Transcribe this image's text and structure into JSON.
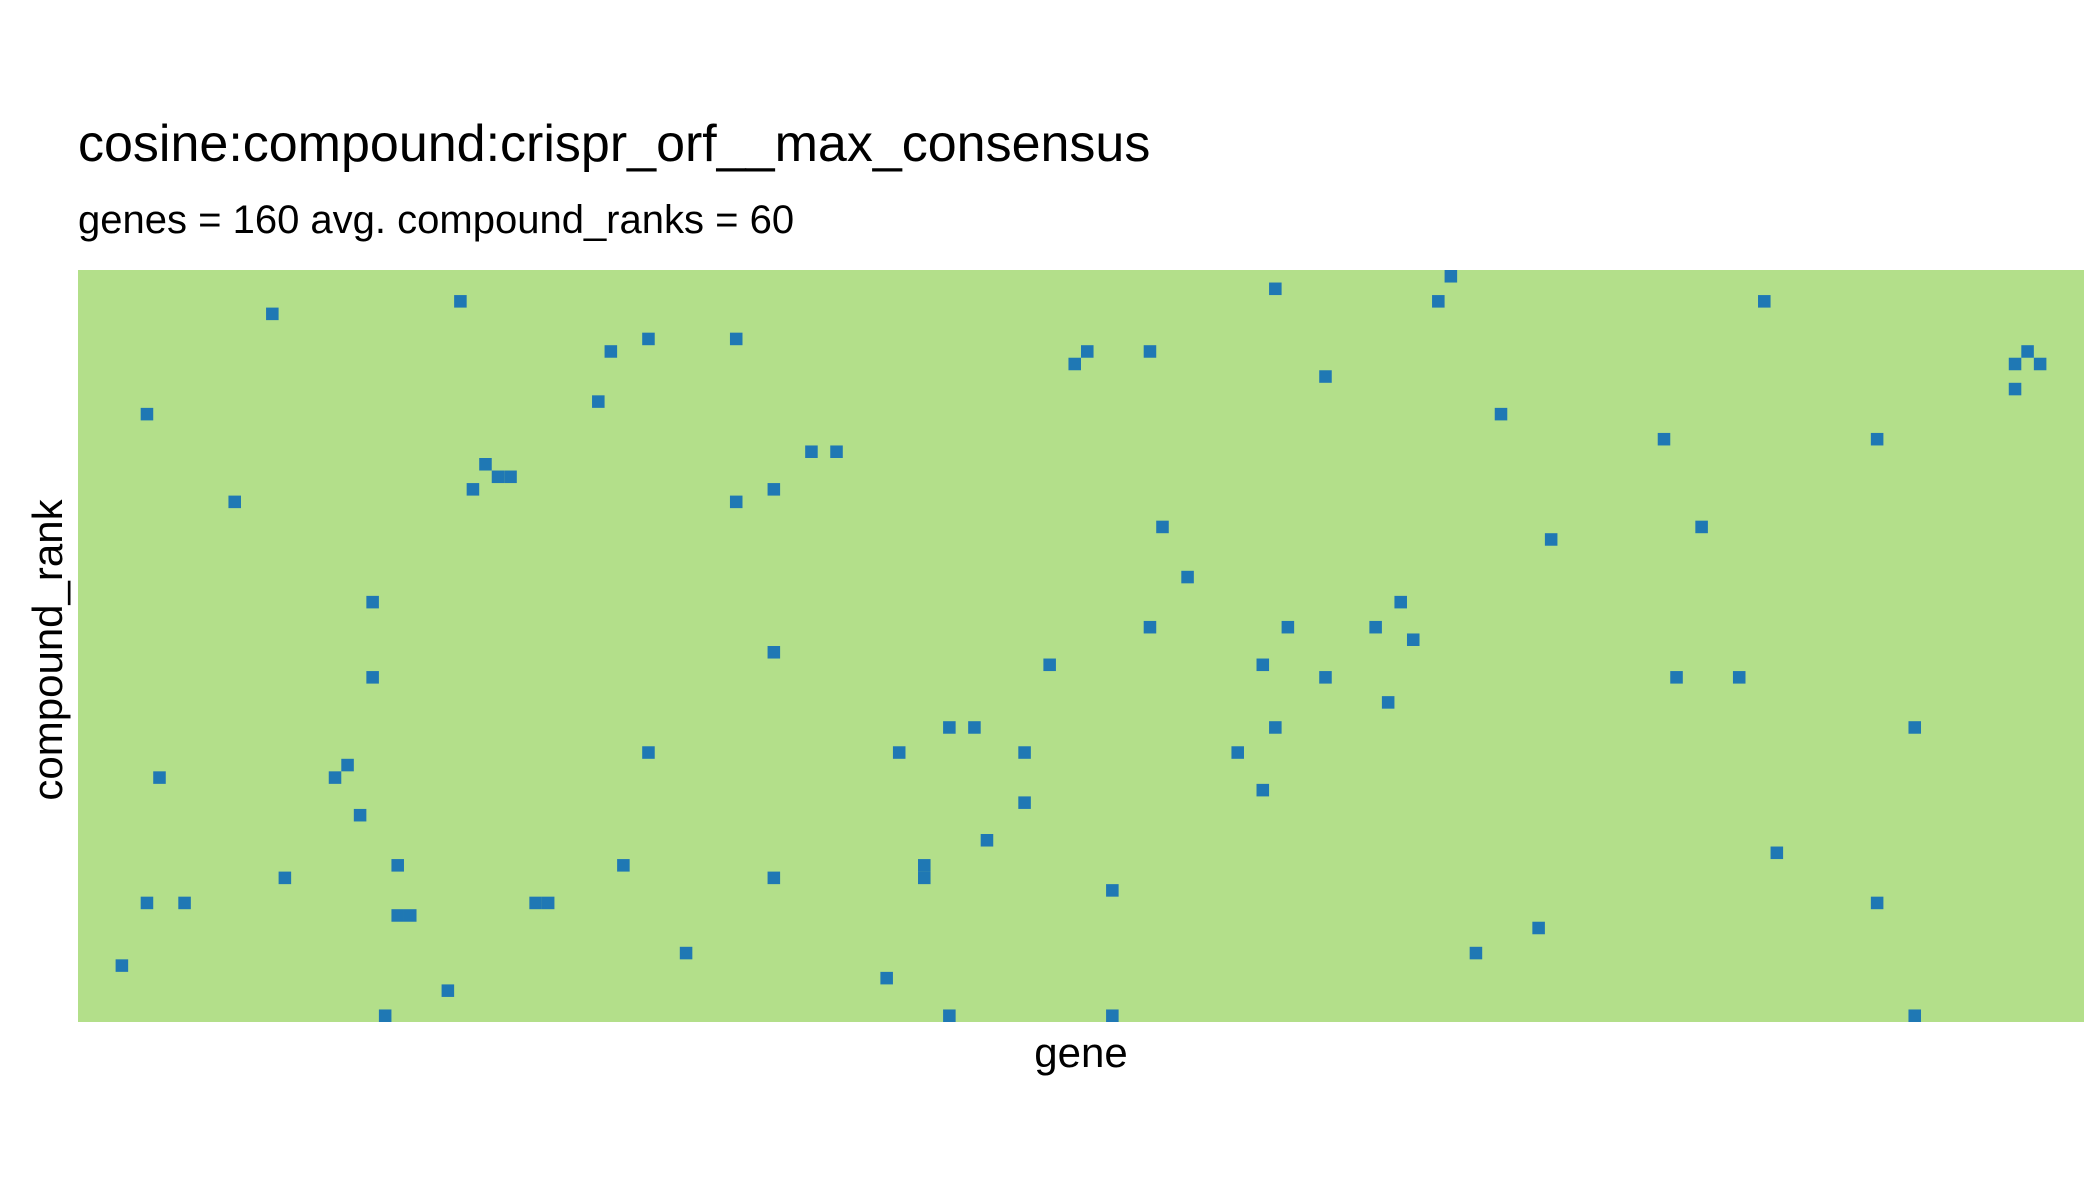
{
  "chart_data": {
    "type": "heatmap",
    "title": "cosine:compound:crispr_orf__max_consensus",
    "subtitle": "genes = 160 avg. compound_ranks = 60",
    "xlabel": "gene",
    "ylabel": "compound_rank",
    "n_genes": 160,
    "n_compound_ranks": 60,
    "colors": {
      "background": "#b3df8a",
      "hit": "#1f78b4"
    },
    "cells": [
      [
        3,
        55
      ],
      [
        5,
        11
      ],
      [
        5,
        50
      ],
      [
        6,
        40
      ],
      [
        8,
        50
      ],
      [
        12,
        18
      ],
      [
        15,
        3
      ],
      [
        16,
        48
      ],
      [
        20,
        40
      ],
      [
        21,
        39
      ],
      [
        22,
        43
      ],
      [
        23,
        26
      ],
      [
        23,
        32
      ],
      [
        24,
        59
      ],
      [
        25,
        47
      ],
      [
        25,
        51
      ],
      [
        26,
        51
      ],
      [
        29,
        57
      ],
      [
        30,
        2
      ],
      [
        31,
        17
      ],
      [
        32,
        15
      ],
      [
        33,
        16
      ],
      [
        34,
        16
      ],
      [
        36,
        50
      ],
      [
        37,
        50
      ],
      [
        41,
        10
      ],
      [
        42,
        6
      ],
      [
        43,
        47
      ],
      [
        45,
        5
      ],
      [
        45,
        38
      ],
      [
        48,
        54
      ],
      [
        52,
        5
      ],
      [
        52,
        18
      ],
      [
        55,
        17
      ],
      [
        55,
        30
      ],
      [
        55,
        48
      ],
      [
        58,
        14
      ],
      [
        60,
        14
      ],
      [
        64,
        56
      ],
      [
        65,
        38
      ],
      [
        67,
        47
      ],
      [
        67,
        48
      ],
      [
        69,
        36
      ],
      [
        69,
        59
      ],
      [
        71,
        36
      ],
      [
        72,
        45
      ],
      [
        75,
        38
      ],
      [
        75,
        42
      ],
      [
        77,
        31
      ],
      [
        79,
        7
      ],
      [
        80,
        6
      ],
      [
        82,
        49
      ],
      [
        82,
        59
      ],
      [
        85,
        6
      ],
      [
        85,
        28
      ],
      [
        86,
        20
      ],
      [
        88,
        24
      ],
      [
        92,
        38
      ],
      [
        94,
        31
      ],
      [
        94,
        41
      ],
      [
        95,
        1
      ],
      [
        95,
        36
      ],
      [
        96,
        28
      ],
      [
        99,
        8
      ],
      [
        99,
        32
      ],
      [
        103,
        28
      ],
      [
        104,
        34
      ],
      [
        105,
        26
      ],
      [
        106,
        29
      ],
      [
        108,
        2
      ],
      [
        109,
        0
      ],
      [
        111,
        54
      ],
      [
        113,
        11
      ],
      [
        116,
        52
      ],
      [
        117,
        21
      ],
      [
        126,
        13
      ],
      [
        127,
        32
      ],
      [
        129,
        20
      ],
      [
        132,
        32
      ],
      [
        134,
        2
      ],
      [
        135,
        46
      ],
      [
        143,
        13
      ],
      [
        143,
        50
      ],
      [
        146,
        36
      ],
      [
        146,
        59
      ],
      [
        154,
        9
      ],
      [
        154,
        7
      ],
      [
        155,
        6
      ],
      [
        156,
        7
      ]
    ]
  }
}
